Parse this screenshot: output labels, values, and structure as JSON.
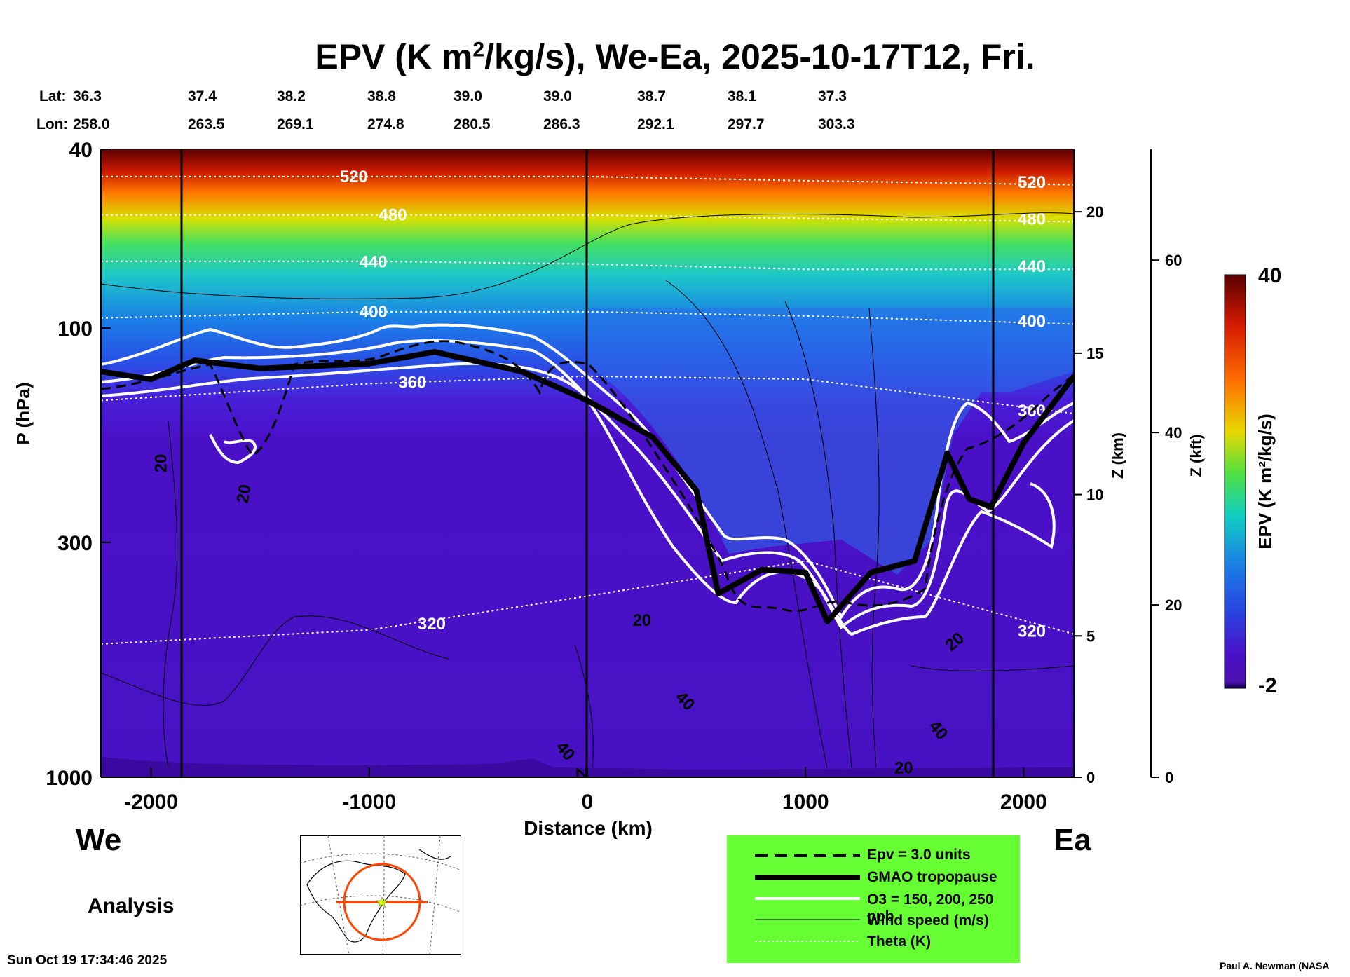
{
  "title": {
    "prefix": "EPV (K m",
    "sup": "2",
    "suffix": "/kg/s), We-Ea, 2025-10-17T12, Fri."
  },
  "header": {
    "lat_label": "Lat:",
    "lon_label": "Lon:",
    "lats": [
      "36.3",
      "37.4",
      "38.2",
      "38.8",
      "39.0",
      "39.0",
      "38.7",
      "38.1",
      "37.3"
    ],
    "lons": [
      "258.0",
      "263.5",
      "269.1",
      "274.8",
      "280.5",
      "286.3",
      "292.1",
      "297.7",
      "303.3"
    ]
  },
  "chart_data": {
    "type": "heatmap",
    "xlabel": "Distance (km)",
    "ylabel": "P (hPa)",
    "x_ticks": [
      "-2000",
      "-1000",
      "0",
      "1000",
      "2000"
    ],
    "xlim": [
      -2230,
      2230
    ],
    "y_ticks": [
      "40",
      "100",
      "300",
      "1000"
    ],
    "ylim": [
      1000,
      40
    ],
    "y_scale": "log",
    "z_km_label": "Z (km)",
    "z_km_ticks": [
      "20",
      "15",
      "10",
      "5",
      "0"
    ],
    "z_kft_label": "Z (kft)",
    "z_kft_ticks": [
      "60",
      "40",
      "20",
      "0"
    ],
    "colorbar": {
      "label": "EPV (K m²/kg/s)",
      "min_label": "-2",
      "max_label": "40",
      "min": -2,
      "max": 40
    },
    "theta_contours": [
      {
        "label": "520",
        "pressure": [
          46,
          46,
          46,
          47,
          48
        ]
      },
      {
        "label": "480",
        "pressure": [
          56,
          56,
          56,
          57,
          58
        ]
      },
      {
        "label": "440",
        "pressure": [
          71,
          71,
          72,
          74,
          74
        ]
      },
      {
        "label": "400",
        "pressure": [
          95,
          92,
          92,
          94,
          98
        ]
      },
      {
        "label": "360",
        "pressure": [
          145,
          133,
          128,
          130,
          155
        ]
      },
      {
        "label": "320",
        "pressure": [
          505,
          470,
          395,
          330,
          480
        ]
      }
    ],
    "theta_x": [
      -2230,
      -1000,
      0,
      1000,
      2230
    ],
    "tropopause_x": [
      -2230,
      -2000,
      -1800,
      -1500,
      -1000,
      -700,
      -300,
      0,
      300,
      500,
      600,
      800,
      1000,
      1100,
      1300,
      1500,
      1650,
      1750,
      1850,
      2000,
      2230
    ],
    "tropopause_p": [
      125,
      130,
      118,
      123,
      120,
      113,
      125,
      145,
      175,
      230,
      390,
      345,
      350,
      450,
      350,
      330,
      190,
      240,
      250,
      180,
      128
    ],
    "wind_labels": [
      "20",
      "20",
      "20",
      "20",
      "20",
      "40",
      "40",
      "40",
      "20",
      "20"
    ],
    "legend": [
      {
        "key": "epv",
        "label": "Epv = 3.0 units"
      },
      {
        "key": "tropopause",
        "label": "GMAO tropopause"
      },
      {
        "key": "ozone",
        "label": "O3 = 150, 200, 250 ppb"
      },
      {
        "key": "wind",
        "label": "Wind speed (m/s)"
      },
      {
        "key": "theta",
        "label": "Theta (K)"
      }
    ],
    "map_inset": "orthographic-map"
  },
  "labels": {
    "west": "We",
    "east": "Ea",
    "analysis": "Analysis",
    "timestamp": "Sun Oct 19 17:34:46 2025",
    "credit": "Paul A. Newman (NASA"
  },
  "colors": {
    "theta": "#ffffff",
    "tropopause": "#000000",
    "ozone": "#ffffff",
    "legend_bg": "#66ff33",
    "map_circle": "#ff4400"
  }
}
